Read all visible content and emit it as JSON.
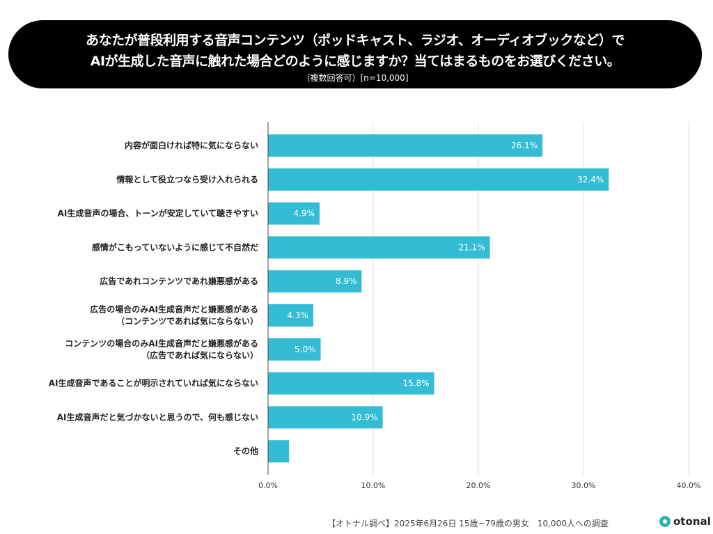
{
  "title": {
    "line1": "あなたが普段利用する音声コンテンツ（ポッドキャスト、ラジオ、オーディオブックなど）で",
    "line2": "AIが生成した音声に触れた場合どのように感じますか？当てはまるものをお選びください。",
    "line3": "（複数回答可）[n=10,000]"
  },
  "chart_data": {
    "type": "bar",
    "orientation": "horizontal",
    "categories": [
      [
        "内容が面白ければ特に気にならない"
      ],
      [
        "情報として役立つなら受け入れられる"
      ],
      [
        "AI生成音声の場合、トーンが安定していて聴きやすい"
      ],
      [
        "感情がこもっていないように感じて不自然だ"
      ],
      [
        "広告であれコンテンツであれ嫌悪感がある"
      ],
      [
        "広告の場合のみAI生成音声だと嫌悪感がある",
        "（コンテンツであれば気にならない）"
      ],
      [
        "コンテンツの場合のみAI生成音声だと嫌悪感がある",
        "（広告であれば気にならない）"
      ],
      [
        "AI生成音声であることが明示されていれば気にならない"
      ],
      [
        "AI生成音声だと気づかないと思うので、何も感じない"
      ],
      [
        "その他"
      ]
    ],
    "values": [
      26.1,
      32.4,
      4.9,
      21.1,
      8.9,
      4.3,
      5.0,
      15.8,
      10.9,
      2.0
    ],
    "data_labels": [
      "26.1%",
      "32.4%",
      "4.9%",
      "21.1%",
      "8.9%",
      "4.3%",
      "5.0%",
      "15.8%",
      "10.9%",
      ""
    ],
    "xlim": [
      0,
      40
    ],
    "xticks": [
      "0.0%",
      "10.0%",
      "20.0%",
      "30.0%",
      "40.0%"
    ],
    "grid": true,
    "bar_color": "#33bcd4"
  },
  "footer": {
    "source": "【オトナル調べ】2025年6月26日 15歳~79歳の男女　10,000人への調査",
    "logo": "otonal"
  }
}
